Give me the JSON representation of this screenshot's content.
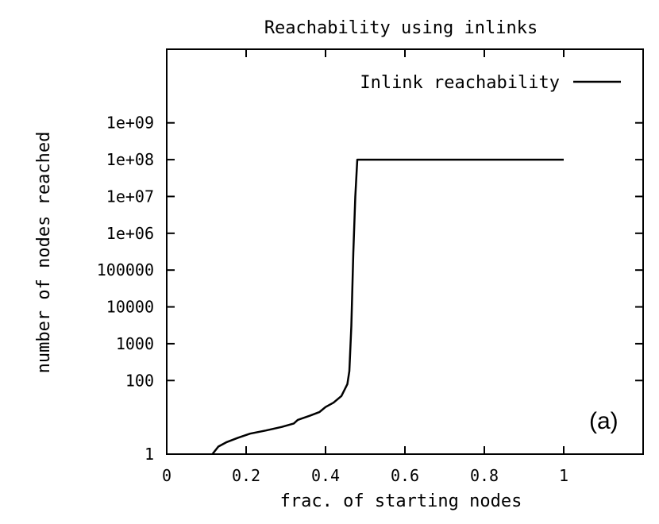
{
  "chart_data": {
    "type": "line",
    "title": "Reachability using inlinks",
    "xlabel": "frac. of starting nodes",
    "ylabel": "number of nodes reached",
    "panel_label": "(a)",
    "xlim": [
      0,
      1.2
    ],
    "ylim": [
      1,
      100000000000
    ],
    "yscale": "log",
    "grid": false,
    "legend_position": "top-right",
    "x_ticks": [
      {
        "value": 0,
        "label": "0"
      },
      {
        "value": 0.2,
        "label": "0.2"
      },
      {
        "value": 0.4,
        "label": "0.4"
      },
      {
        "value": 0.6,
        "label": "0.6"
      },
      {
        "value": 0.8,
        "label": "0.8"
      },
      {
        "value": 1,
        "label": "1"
      }
    ],
    "y_ticks": [
      {
        "value": 1,
        "label": "1"
      },
      {
        "value": 100,
        "label": "100"
      },
      {
        "value": 1000,
        "label": "1000"
      },
      {
        "value": 10000,
        "label": "10000"
      },
      {
        "value": 100000,
        "label": "100000"
      },
      {
        "value": 1000000,
        "label": "1e+06"
      },
      {
        "value": 10000000,
        "label": "1e+07"
      },
      {
        "value": 100000000,
        "label": "1e+08"
      },
      {
        "value": 1000000000,
        "label": "1e+09"
      }
    ],
    "series": [
      {
        "name": "Inlink reachability",
        "color": "#000000",
        "points": [
          [
            0.115,
            1
          ],
          [
            0.13,
            1.6
          ],
          [
            0.15,
            2.1
          ],
          [
            0.18,
            2.8
          ],
          [
            0.21,
            3.6
          ],
          [
            0.25,
            4.4
          ],
          [
            0.29,
            5.5
          ],
          [
            0.32,
            6.8
          ],
          [
            0.33,
            8.5
          ],
          [
            0.36,
            11
          ],
          [
            0.385,
            14
          ],
          [
            0.4,
            19
          ],
          [
            0.42,
            25
          ],
          [
            0.44,
            38
          ],
          [
            0.455,
            80
          ],
          [
            0.46,
            180
          ],
          [
            0.465,
            3000
          ],
          [
            0.47,
            300000
          ],
          [
            0.475,
            10000000
          ],
          [
            0.48,
            100000000
          ],
          [
            1.0,
            100000000
          ]
        ]
      }
    ]
  }
}
